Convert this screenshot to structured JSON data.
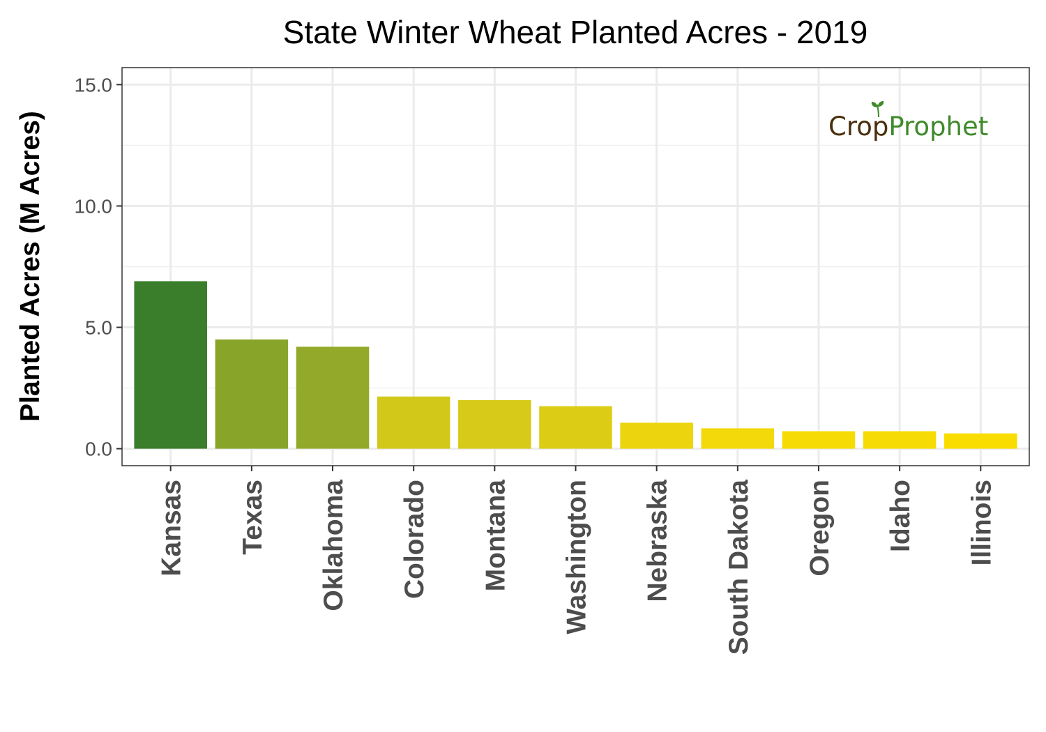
{
  "chart_data": {
    "type": "bar",
    "title": "State Winter Wheat Planted Acres - 2019",
    "xlabel": "",
    "ylabel": "Planted Acres (M Acres)",
    "ylim": [
      -0.7,
      15.7
    ],
    "yticks": [
      0,
      5,
      10,
      15
    ],
    "ytick_labels": [
      "0.0",
      "5.0",
      "10.0",
      "15.0"
    ],
    "grid": true,
    "legend": "none",
    "categories": [
      "Kansas",
      "Texas",
      "Oklahoma",
      "Colorado",
      "Montana",
      "Washington",
      "Nebraska",
      "South Dakota",
      "Oregon",
      "Idaho",
      "Illinois"
    ],
    "values": [
      6.9,
      4.5,
      4.2,
      2.15,
      2.0,
      1.75,
      1.07,
      0.84,
      0.72,
      0.72,
      0.63
    ],
    "colors": [
      "#3a7d2b",
      "#88a52a",
      "#93a92a",
      "#d2c81a",
      "#d7ca18",
      "#dccc15",
      "#ecd40e",
      "#f3d80a",
      "#f6db05",
      "#f6db05",
      "#fadd00"
    ],
    "watermark": {
      "part1": "Crop",
      "part2": "Prophet",
      "color1": "#4a2f0c",
      "color2": "#3f8a2a"
    }
  }
}
